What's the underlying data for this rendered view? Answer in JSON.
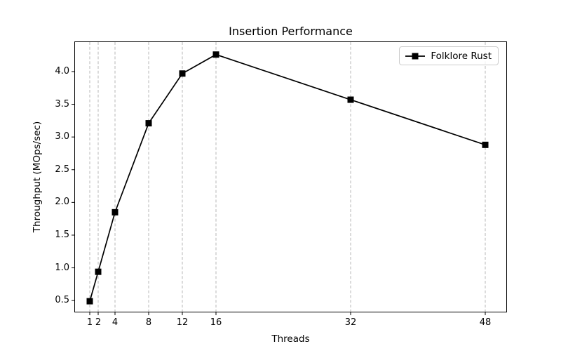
{
  "chart_data": {
    "type": "line",
    "title": "Insertion Performance",
    "xlabel": "Threads",
    "ylabel": "Throughput (MOps/sec)",
    "x": [
      1,
      2,
      4,
      8,
      12,
      16,
      32,
      48
    ],
    "series": [
      {
        "name": "Folklore Rust",
        "values": [
          0.49,
          0.94,
          1.85,
          3.21,
          3.97,
          4.26,
          3.57,
          2.88
        ],
        "color": "#000000",
        "marker": "square"
      }
    ],
    "xticks": [
      1,
      2,
      4,
      8,
      12,
      16,
      32,
      48
    ],
    "yticks": [
      0.5,
      1.0,
      1.5,
      2.0,
      2.5,
      3.0,
      3.5,
      4.0
    ],
    "xlim": [
      -0.75,
      50.5
    ],
    "ylim": [
      0.33,
      4.45
    ],
    "grid": {
      "vertical": true,
      "horizontal": false,
      "style": "dashed",
      "color": "#b0b0b0"
    },
    "legend": {
      "position": "upper-right",
      "entries": [
        "Folklore Rust"
      ]
    },
    "colors": {
      "line": "#000000",
      "spine": "#000000",
      "grid": "#b0b0b0",
      "legend_border": "#cccccc",
      "background": "#ffffff"
    }
  }
}
